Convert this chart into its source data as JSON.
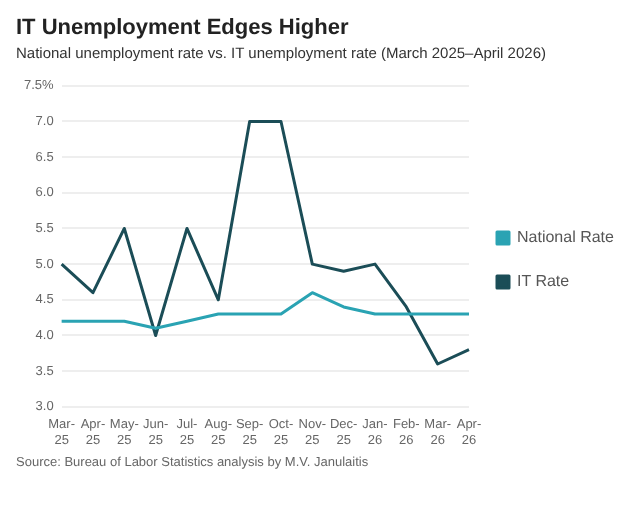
{
  "chart_data": {
    "type": "line",
    "title": "IT Unemployment Edges Higher",
    "subtitle": "National unemployment rate vs. IT unemployment rate (March 2025–April 2026)",
    "categories": [
      "Mar-25",
      "Apr-25",
      "May-25",
      "Jun-25",
      "Jul-25",
      "Aug-25",
      "Sep-25",
      "Oct-25",
      "Nov-25",
      "Dec-25",
      "Jan-26",
      "Feb-26",
      "Mar-26",
      "Apr-26"
    ],
    "series": [
      {
        "name": "National Rate",
        "color": "#2aa3b3",
        "values": [
          4.2,
          4.2,
          4.2,
          4.1,
          4.2,
          4.3,
          4.3,
          4.3,
          4.6,
          4.4,
          4.3,
          4.3,
          4.3,
          4.3
        ]
      },
      {
        "name": "IT Rate",
        "color": "#1b4d57",
        "values": [
          5.0,
          4.6,
          5.5,
          4.0,
          5.5,
          4.5,
          7.0,
          7.0,
          5.0,
          4.9,
          5.0,
          4.4,
          3.6,
          3.8
        ]
      }
    ],
    "ylim": [
      3.0,
      7.5
    ],
    "yticks": [
      {
        "value": 3.0,
        "label": "3.0"
      },
      {
        "value": 3.5,
        "label": "3.5"
      },
      {
        "value": 4.0,
        "label": "4.0"
      },
      {
        "value": 4.5,
        "label": "4.5"
      },
      {
        "value": 5.0,
        "label": "5.0"
      },
      {
        "value": 5.5,
        "label": "5.5"
      },
      {
        "value": 6.0,
        "label": "6.0"
      },
      {
        "value": 6.5,
        "label": "6.5"
      },
      {
        "value": 7.0,
        "label": "7.0"
      },
      {
        "value": 7.5,
        "label": "7.5%"
      }
    ],
    "grid": "y",
    "legend": "right",
    "marker": "none",
    "line_style": "solid",
    "annotations": [
      "Source: Bureau of Labor Statistics analysis by M.V. Janulaitis"
    ]
  }
}
